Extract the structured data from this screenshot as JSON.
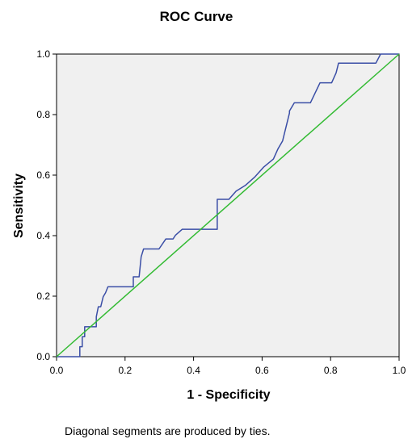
{
  "chart_data": {
    "type": "line",
    "title": "ROC Curve",
    "xlabel": "1 - Specificity",
    "ylabel": "Sensitivity",
    "xlim": [
      0,
      1
    ],
    "ylim": [
      0,
      1
    ],
    "x_ticks": [
      "0.0",
      "0.2",
      "0.4",
      "0.6",
      "0.8",
      "1.0"
    ],
    "y_ticks": [
      "0.0",
      "0.2",
      "0.4",
      "0.6",
      "0.8",
      "1.0"
    ],
    "grid": false,
    "footnote": "Diagonal segments are produced by ties.",
    "plot_background": "#f0f0f0",
    "series": [
      {
        "color": "#3a4ea6",
        "x": [
          0.0,
          0.068,
          0.068,
          0.075,
          0.075,
          0.082,
          0.082,
          0.089,
          0.089,
          0.116,
          0.116,
          0.122,
          0.129,
          0.136,
          0.143,
          0.15,
          0.156,
          0.224,
          0.224,
          0.241,
          0.241,
          0.247,
          0.254,
          0.258,
          0.299,
          0.319,
          0.34,
          0.347,
          0.367,
          0.401,
          0.469,
          0.469,
          0.476,
          0.503,
          0.524,
          0.551,
          0.578,
          0.605,
          0.633,
          0.646,
          0.66,
          0.667,
          0.68,
          0.68,
          0.694,
          0.714,
          0.741,
          0.769,
          0.803,
          0.816,
          0.823,
          0.85,
          0.932,
          0.946,
          1.0
        ],
        "y": [
          0.0,
          0.0,
          0.033,
          0.033,
          0.066,
          0.066,
          0.099,
          0.099,
          0.099,
          0.099,
          0.132,
          0.165,
          0.165,
          0.198,
          0.211,
          0.231,
          0.231,
          0.231,
          0.264,
          0.264,
          0.264,
          0.33,
          0.356,
          0.356,
          0.356,
          0.389,
          0.389,
          0.401,
          0.421,
          0.421,
          0.421,
          0.52,
          0.52,
          0.52,
          0.547,
          0.566,
          0.593,
          0.627,
          0.653,
          0.686,
          0.713,
          0.746,
          0.805,
          0.812,
          0.839,
          0.839,
          0.839,
          0.905,
          0.905,
          0.938,
          0.97,
          0.97,
          0.97,
          1.0,
          1.0
        ]
      },
      {
        "color": "#33bb33",
        "x": [
          0,
          1
        ],
        "y": [
          0,
          1
        ]
      }
    ]
  }
}
